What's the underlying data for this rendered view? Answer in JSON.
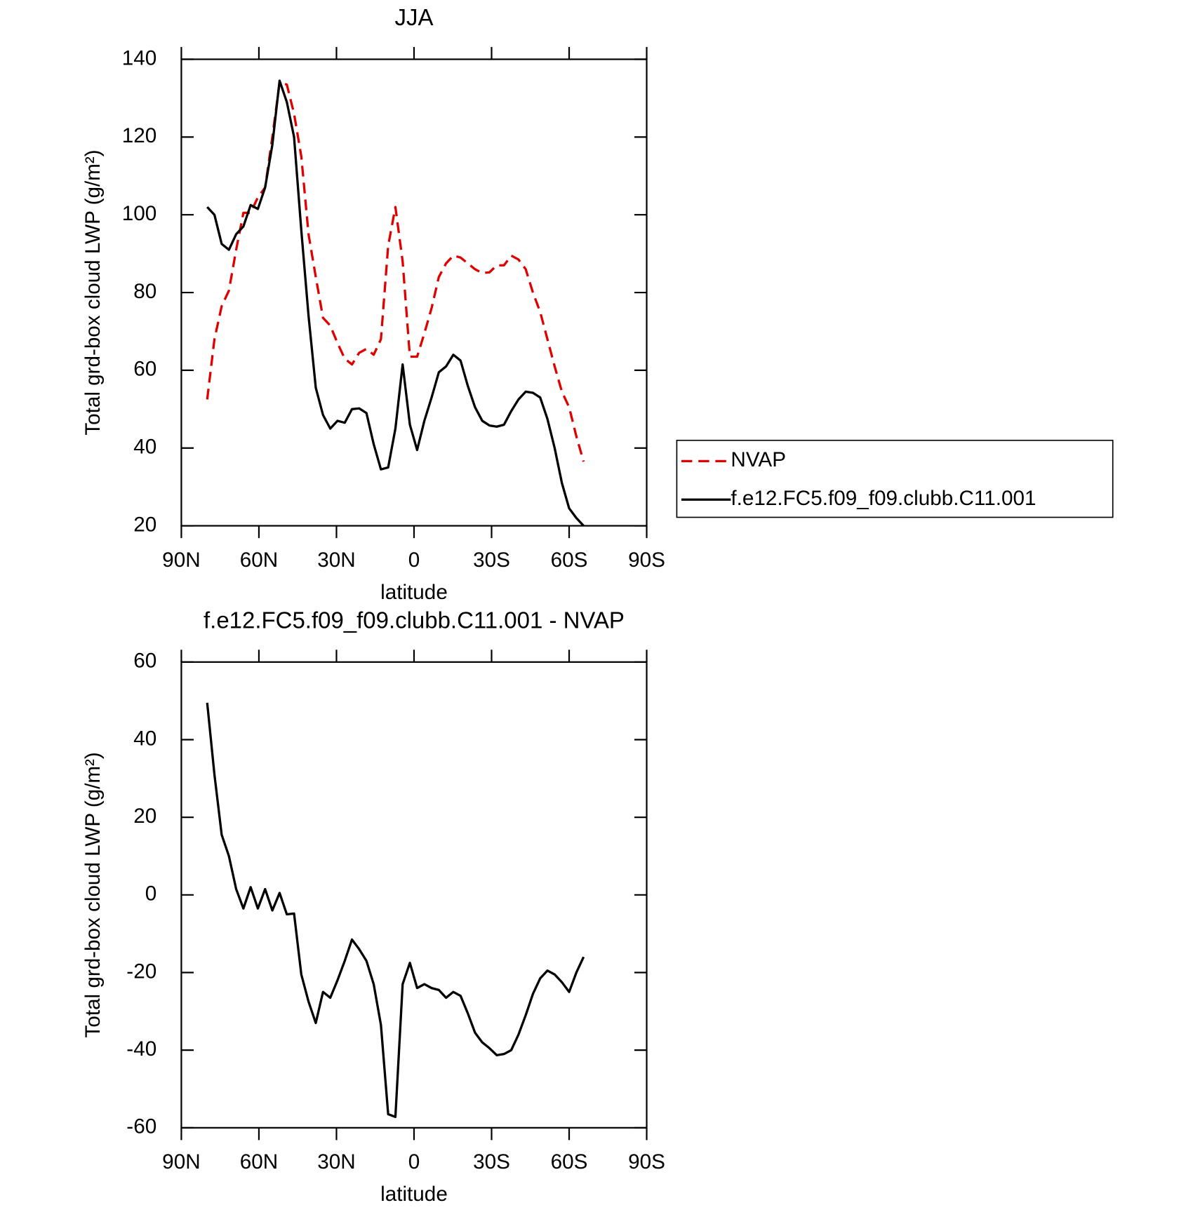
{
  "chart_data": [
    {
      "type": "line",
      "title": "JJA",
      "xlabel": "latitude",
      "ylabel": "Total grd-box cloud LWP (g/m²)",
      "xlim": [
        90,
        -90
      ],
      "xticks": [
        {
          "value": 90,
          "label": "90N"
        },
        {
          "value": 60,
          "label": "60N"
        },
        {
          "value": 30,
          "label": "30N"
        },
        0,
        {
          "value": -30,
          "label": "30S"
        },
        {
          "value": -60,
          "label": "60S"
        },
        {
          "value": -90,
          "label": "90S"
        }
      ],
      "ylim": [
        20,
        140
      ],
      "yticks": [
        20,
        40,
        60,
        80,
        100,
        120,
        140
      ],
      "x": [
        80,
        77.2,
        74.4,
        71.6,
        68.8,
        66,
        63.2,
        60.4,
        57.6,
        54.8,
        52,
        49.2,
        46.4,
        43.6,
        40.8,
        38,
        35.2,
        32.4,
        29.6,
        26.8,
        24,
        21.2,
        18.4,
        15.6,
        12.8,
        10,
        7.2,
        4.4,
        1.6,
        -1.2,
        -4,
        -6.8,
        -9.6,
        -12.4,
        -15.2,
        -18,
        -20.8,
        -23.6,
        -26.4,
        -29.2,
        -32,
        -34.8,
        -37.6,
        -40.4,
        -43.2,
        -46,
        -48.8,
        -51.6,
        -54.4,
        -57.2,
        -60,
        -62.8,
        -65.6
      ],
      "legend": "right",
      "series": [
        {
          "name": "NVAP",
          "color": "#e00000",
          "dash": true,
          "values": [
            52.5,
            68,
            76.5,
            80.5,
            91,
            100.5,
            100.5,
            104.5,
            107,
            120,
            134,
            133.5,
            126,
            115,
            95,
            84,
            73.5,
            71.5,
            67,
            63,
            61.5,
            64.5,
            65.5,
            64,
            68,
            92,
            102,
            88,
            63.5,
            63.5,
            69.5,
            76,
            84,
            87.5,
            89.5,
            89,
            87.5,
            86,
            85,
            85.2,
            87,
            87,
            89.5,
            88.5,
            86,
            80,
            75,
            68,
            61,
            54.5,
            50.5,
            43,
            36.5
          ]
        },
        {
          "name": "f.e12.FC5.f09_f09.clubb.C11.001",
          "color": "#000000",
          "dash": false,
          "values": [
            102,
            100,
            92.5,
            91,
            95,
            97,
            102.5,
            101.5,
            107,
            118,
            134.5,
            129,
            120,
            96,
            74,
            55.5,
            48.5,
            45,
            47,
            46.5,
            50,
            50.2,
            49,
            41,
            34.5,
            35,
            45,
            61.5,
            46,
            39.5,
            47,
            53,
            59.5,
            61,
            64,
            62.5,
            56,
            50.5,
            47,
            45.8,
            45.5,
            46,
            49.5,
            52.5,
            54.5,
            54.2,
            53,
            47.5,
            40,
            31,
            24.5,
            22,
            20
          ]
        }
      ]
    },
    {
      "type": "line",
      "title": "f.e12.FC5.f09_f09.clubb.C11.001 - NVAP",
      "xlabel": "latitude",
      "ylabel": "Total grd-box cloud LWP (g/m²)",
      "xlim": [
        90,
        -90
      ],
      "xticks": [
        {
          "value": 90,
          "label": "90N"
        },
        {
          "value": 60,
          "label": "60N"
        },
        {
          "value": 30,
          "label": "30N"
        },
        0,
        {
          "value": -30,
          "label": "30S"
        },
        {
          "value": -60,
          "label": "60S"
        },
        {
          "value": -90,
          "label": "90S"
        }
      ],
      "ylim": [
        -60,
        60
      ],
      "yticks": [
        -60,
        -40,
        -20,
        0,
        20,
        40,
        60
      ],
      "x": [
        80,
        77.2,
        74.4,
        71.6,
        68.8,
        66,
        63.2,
        60.4,
        57.6,
        54.8,
        52,
        49.2,
        46.4,
        43.6,
        40.8,
        38,
        35.2,
        32.4,
        29.6,
        26.8,
        24,
        21.2,
        18.4,
        15.6,
        12.8,
        10,
        7.2,
        4.4,
        1.6,
        -1.2,
        -4,
        -6.8,
        -9.6,
        -12.4,
        -15.2,
        -18,
        -20.8,
        -23.6,
        -26.4,
        -29.2,
        -32,
        -34.8,
        -37.6,
        -40.4,
        -43.2,
        -46,
        -48.8,
        -51.6,
        -54.4,
        -57.2,
        -60,
        -62.8,
        -65.6
      ],
      "series": [
        {
          "color": "#000000",
          "dash": false,
          "values": [
            49.5,
            31,
            15.5,
            10,
            1.5,
            -3.5,
            2,
            -3.5,
            1.5,
            -4,
            0.5,
            -5,
            -4.8,
            -20.5,
            -27.5,
            -33,
            -25,
            -26.5,
            -22,
            -17,
            -11.5,
            -14,
            -17,
            -23,
            -33.5,
            -56.5,
            -57.2,
            -23,
            -17.5,
            -24,
            -23,
            -24,
            -24.5,
            -26.5,
            -25,
            -26,
            -30.5,
            -35.5,
            -38,
            -39.5,
            -41.3,
            -41,
            -40,
            -36,
            -31,
            -25.5,
            -21.5,
            -19.5,
            -20.5,
            -22.5,
            -25,
            -20,
            -16
          ]
        }
      ]
    }
  ]
}
